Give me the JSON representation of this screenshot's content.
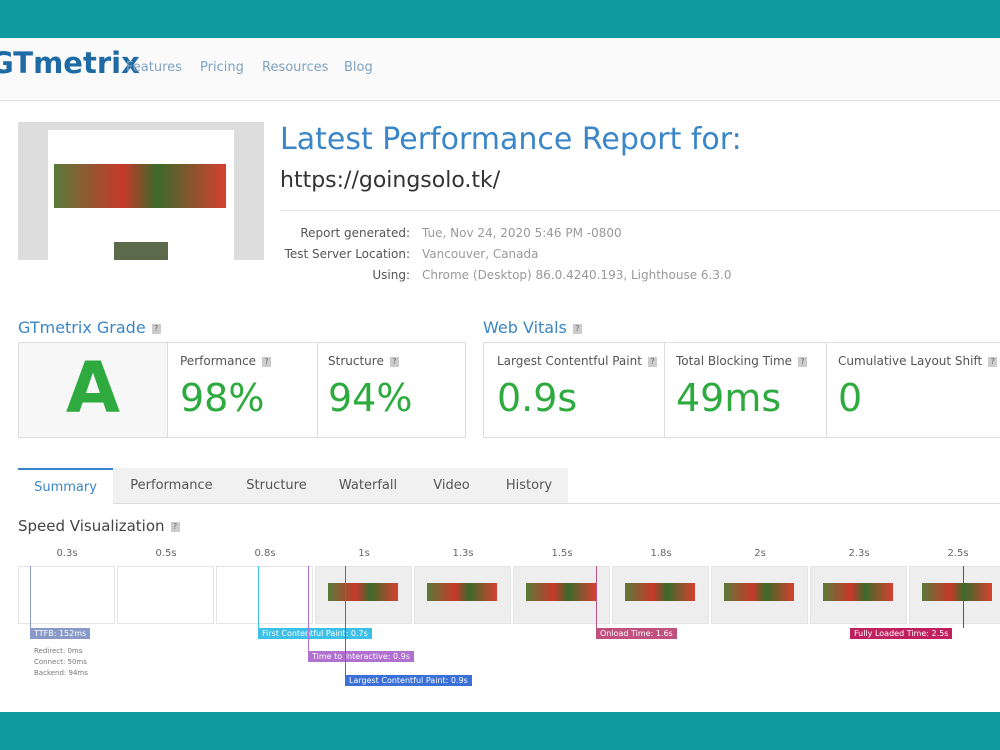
{
  "nav": {
    "logo": "GTmetrix",
    "links": [
      "Features",
      "Pricing",
      "Resources",
      "Blog"
    ]
  },
  "report": {
    "title": "Latest Performance Report for:",
    "url": "https://goingsolo.tk/",
    "meta": [
      {
        "label": "Report generated:",
        "value": "Tue, Nov 24, 2020 5:46 PM -0800"
      },
      {
        "label": "Test Server Location:",
        "value": "Vancouver, Canada"
      },
      {
        "label": "Using:",
        "value": "Chrome (Desktop) 86.0.4240.193, Lighthouse 6.3.0"
      }
    ]
  },
  "grade": {
    "heading": "GTmetrix Grade",
    "letter": "A",
    "metrics": [
      {
        "label": "Performance",
        "value": "98%"
      },
      {
        "label": "Structure",
        "value": "94%"
      }
    ]
  },
  "vitals": {
    "heading": "Web Vitals",
    "metrics": [
      {
        "label": "Largest Contentful Paint",
        "value": "0.9s"
      },
      {
        "label": "Total Blocking Time",
        "value": "49ms"
      },
      {
        "label": "Cumulative Layout Shift",
        "value": "0"
      }
    ]
  },
  "tabs": [
    "Summary",
    "Performance",
    "Structure",
    "Waterfall",
    "Video",
    "History"
  ],
  "speed": {
    "heading": "Speed Visualization",
    "times": [
      "0.3s",
      "0.5s",
      "0.8s",
      "1s",
      "1.3s",
      "1.5s",
      "1.8s",
      "2s",
      "2.3s",
      "2.5s"
    ],
    "ttfb": {
      "label": "TTFB: 152ms",
      "details": [
        "Redirect: 0ms",
        "Connect: 50ms",
        "Backend: 94ms"
      ]
    },
    "markers": [
      {
        "label": "First Contentful Paint: 0.7s"
      },
      {
        "label": "Time to Interactive: 0.9s"
      },
      {
        "label": "Largest Contentful Paint: 0.9s"
      },
      {
        "label": "Onload Time: 1.6s"
      },
      {
        "label": "Fully Loaded Time: 2.5s"
      }
    ]
  }
}
